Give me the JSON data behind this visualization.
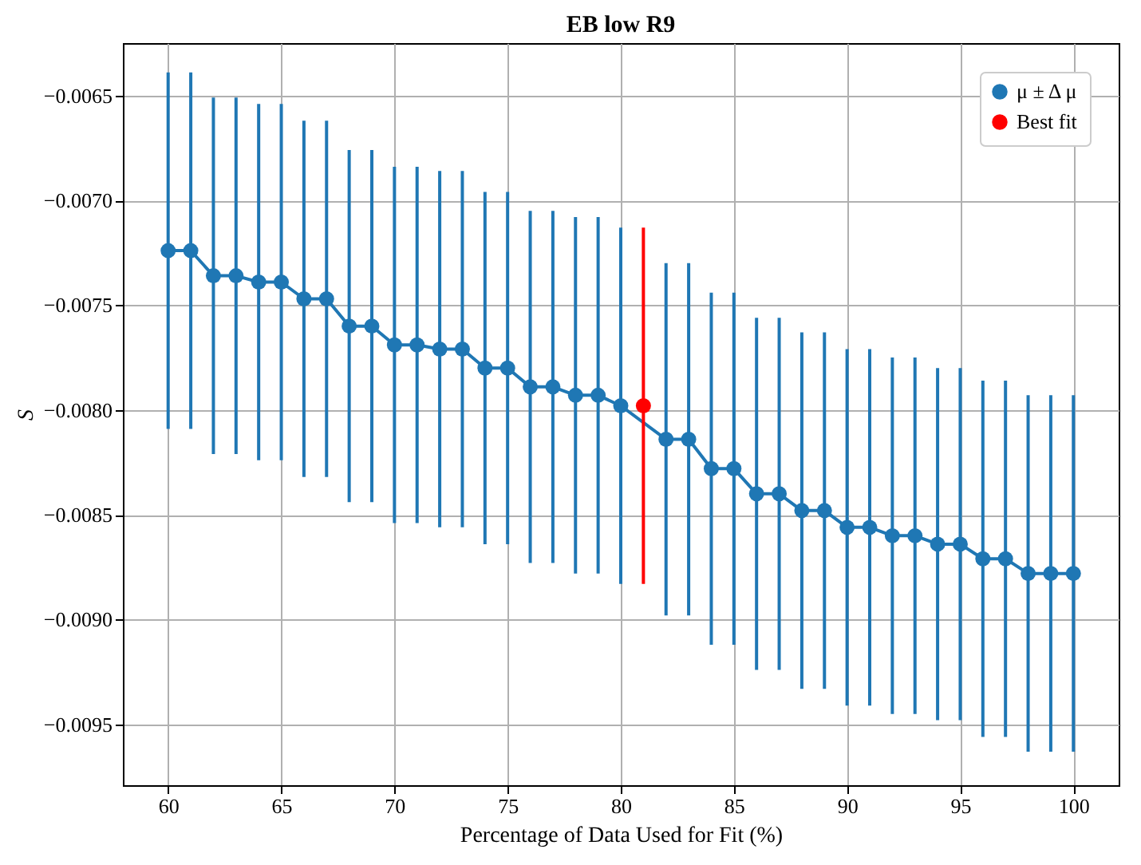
{
  "chart_data": {
    "type": "line",
    "title": "EB low R9",
    "xlabel": "Percentage of Data Used for Fit (%)",
    "ylabel": "S",
    "series": [
      {
        "name": "μ ± Δ μ",
        "color": "#1f77b4",
        "x": [
          60,
          61,
          62,
          63,
          64,
          65,
          66,
          67,
          68,
          69,
          70,
          71,
          72,
          73,
          74,
          75,
          76,
          77,
          78,
          79,
          80,
          82,
          83,
          84,
          85,
          86,
          87,
          88,
          89,
          90,
          91,
          92,
          93,
          94,
          95,
          96,
          97,
          98,
          99,
          100
        ],
        "values": [
          -0.00724,
          -0.00724,
          -0.00736,
          -0.00736,
          -0.00739,
          -0.00739,
          -0.00747,
          -0.00747,
          -0.0076,
          -0.0076,
          -0.00769,
          -0.00769,
          -0.00771,
          -0.00771,
          -0.0078,
          -0.0078,
          -0.00789,
          -0.00789,
          -0.00793,
          -0.00793,
          -0.00798,
          -0.00814,
          -0.00814,
          -0.00828,
          -0.00828,
          -0.0084,
          -0.0084,
          -0.00848,
          -0.00848,
          -0.00856,
          -0.00856,
          -0.0086,
          -0.0086,
          -0.00864,
          -0.00864,
          -0.00871,
          -0.00871,
          -0.00878,
          -0.00878,
          -0.00878
        ],
        "errors": [
          0.00085,
          0.00085,
          0.00085,
          0.00085,
          0.00085,
          0.00085,
          0.00085,
          0.00085,
          0.00084,
          0.00084,
          0.00085,
          0.00085,
          0.00085,
          0.00085,
          0.00084,
          0.00084,
          0.00084,
          0.00084,
          0.00085,
          0.00085,
          0.00085,
          0.00084,
          0.00084,
          0.00084,
          0.00084,
          0.00084,
          0.00084,
          0.00085,
          0.00085,
          0.00085,
          0.00085,
          0.00085,
          0.00085,
          0.00084,
          0.00084,
          0.00085,
          0.00085,
          0.00085,
          0.00085,
          0.00085
        ]
      },
      {
        "name": "Best fit",
        "color": "#ff0000",
        "x": [
          81
        ],
        "values": [
          -0.00798
        ],
        "errors": [
          0.00085
        ]
      }
    ],
    "xlim": [
      58,
      102
    ],
    "xticks": [
      60,
      65,
      70,
      75,
      80,
      85,
      90,
      95,
      100
    ],
    "ylim": [
      -0.00979,
      -0.00625
    ],
    "yticks": [
      {
        "value": -0.0095,
        "label": "−0.0095"
      },
      {
        "value": -0.009,
        "label": "−0.0090"
      },
      {
        "value": -0.0085,
        "label": "−0.0085"
      },
      {
        "value": -0.008,
        "label": "−0.0080"
      },
      {
        "value": -0.0075,
        "label": "−0.0075"
      },
      {
        "value": -0.007,
        "label": "−0.0070"
      },
      {
        "value": -0.0065,
        "label": "−0.0065"
      }
    ],
    "grid": true,
    "legend": "top right",
    "marker": "circle",
    "line_style": "solid"
  }
}
